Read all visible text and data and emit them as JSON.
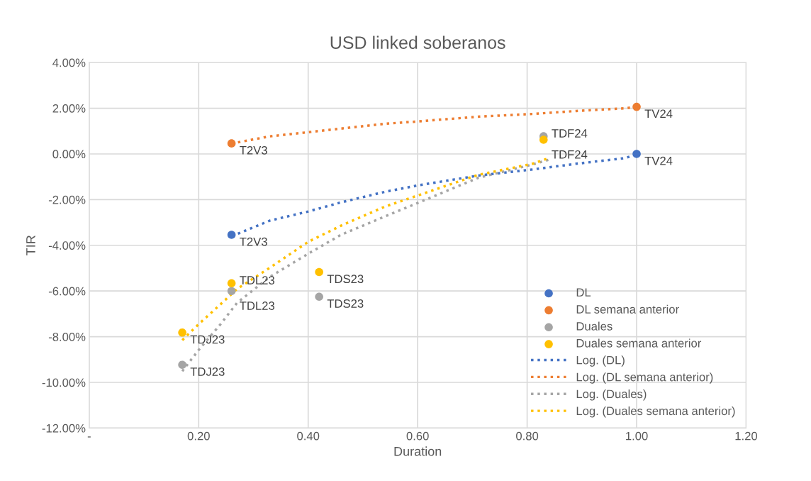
{
  "chart_data": {
    "type": "scatter",
    "title": "USD linked soberanos",
    "xlabel": "Duration",
    "ylabel": "TIR",
    "xlim": [
      0,
      1.2
    ],
    "ylim": [
      -12,
      4
    ],
    "xticks": [
      {
        "value": 0,
        "label": "-"
      },
      {
        "value": 0.2,
        "label": "0.20"
      },
      {
        "value": 0.4,
        "label": "0.40"
      },
      {
        "value": 0.6,
        "label": "0.60"
      },
      {
        "value": 0.8,
        "label": "0.80"
      },
      {
        "value": 1.0,
        "label": "1.00"
      },
      {
        "value": 1.2,
        "label": "1.20"
      }
    ],
    "yticks": [
      {
        "value": -12,
        "label": "-12.00%"
      },
      {
        "value": -10,
        "label": "-10.00%"
      },
      {
        "value": -8,
        "label": "-8.00%"
      },
      {
        "value": -6,
        "label": "-6.00%"
      },
      {
        "value": -4,
        "label": "-4.00%"
      },
      {
        "value": -2,
        "label": "-2.00%"
      },
      {
        "value": 0,
        "label": "0.00%"
      },
      {
        "value": 2,
        "label": "2.00%"
      },
      {
        "value": 4,
        "label": "4.00%"
      }
    ],
    "grid": true,
    "legend": "lower right",
    "series": [
      {
        "name": "DL",
        "marker": "circle",
        "color": "#4472c4",
        "x": [
          0.26,
          1.0
        ],
        "values": [
          -3.54,
          0.0
        ]
      },
      {
        "name": "DL semana anterior",
        "marker": "circle",
        "color": "#ed7d31",
        "x": [
          0.26,
          1.0
        ],
        "values": [
          0.46,
          2.06
        ]
      },
      {
        "name": "Duales",
        "marker": "circle",
        "color": "#a5a5a5",
        "x": [
          0.17,
          0.26,
          0.42,
          0.83
        ],
        "values": [
          -9.23,
          -6.0,
          -6.25,
          0.77
        ]
      },
      {
        "name": "Duales semana anterior",
        "marker": "circle",
        "color": "#ffc000",
        "x": [
          0.17,
          0.26,
          0.42,
          0.83
        ],
        "values": [
          -7.82,
          -5.66,
          -5.17,
          0.62
        ]
      },
      {
        "name": "Log. (DL)",
        "type": "line",
        "line_style": "dotted",
        "color": "#4472c4",
        "x": [
          0.26,
          0.27,
          0.33,
          0.4,
          0.46,
          0.54,
          0.6,
          0.71,
          0.81,
          0.89,
          0.98,
          1.0
        ],
        "values": [
          -3.54,
          -3.51,
          -2.92,
          -2.52,
          -2.12,
          -1.66,
          -1.38,
          -0.95,
          -0.68,
          -0.43,
          -0.18,
          0.0
        ]
      },
      {
        "name": "Log. (DL semana anterior)",
        "type": "line",
        "line_style": "dotted",
        "color": "#ed7d31",
        "x": [
          0.26,
          0.27,
          0.33,
          0.4,
          0.46,
          0.54,
          0.6,
          0.71,
          0.81,
          0.89,
          0.98,
          1.0
        ],
        "values": [
          0.46,
          0.5,
          0.77,
          0.95,
          1.11,
          1.32,
          1.42,
          1.63,
          1.75,
          1.88,
          2.0,
          2.06
        ]
      },
      {
        "name": "Log. (Duales)",
        "type": "line",
        "line_style": "dotted",
        "color": "#a5a5a5",
        "x": [
          0.17,
          0.2,
          0.24,
          0.27,
          0.33,
          0.4,
          0.46,
          0.54,
          0.6,
          0.71,
          0.81,
          0.84
        ],
        "values": [
          -9.51,
          -8.58,
          -7.45,
          -6.52,
          -5.38,
          -4.37,
          -3.54,
          -2.74,
          -2.15,
          -1.05,
          -0.46,
          -0.25
        ]
      },
      {
        "name": "Log. (Duales semana anterior)",
        "type": "line",
        "line_style": "dotted",
        "color": "#ffc000",
        "x": [
          0.17,
          0.2,
          0.24,
          0.27,
          0.33,
          0.4,
          0.46,
          0.54,
          0.6,
          0.71,
          0.81,
          0.84
        ],
        "values": [
          -8.15,
          -7.45,
          -6.58,
          -5.91,
          -4.98,
          -3.85,
          -3.14,
          -2.31,
          -1.82,
          -0.92,
          -0.43,
          -0.18
        ]
      }
    ],
    "annotations": [
      {
        "text": "T2V3",
        "x": 0.26,
        "y": -3.54
      },
      {
        "text": "TV24",
        "x": 1.0,
        "y": 0.0
      },
      {
        "text": "T2V3",
        "x": 0.26,
        "y": 0.46
      },
      {
        "text": "TV24",
        "x": 1.0,
        "y": 2.06
      },
      {
        "text": "TDJ23",
        "x": 0.17,
        "y": -9.23
      },
      {
        "text": "TDL23",
        "x": 0.26,
        "y": -6.0
      },
      {
        "text": "TDS23",
        "x": 0.42,
        "y": -6.25
      },
      {
        "text": "TDF24",
        "x": 0.83,
        "y": 0.77
      },
      {
        "text": "TDJ23",
        "x": 0.17,
        "y": -7.82
      },
      {
        "text": "TDL23",
        "x": 0.26,
        "y": -5.66
      },
      {
        "text": "TDS23",
        "x": 0.42,
        "y": -5.17
      },
      {
        "text": "TDF24",
        "x": 0.83,
        "y": 0.62
      }
    ]
  }
}
